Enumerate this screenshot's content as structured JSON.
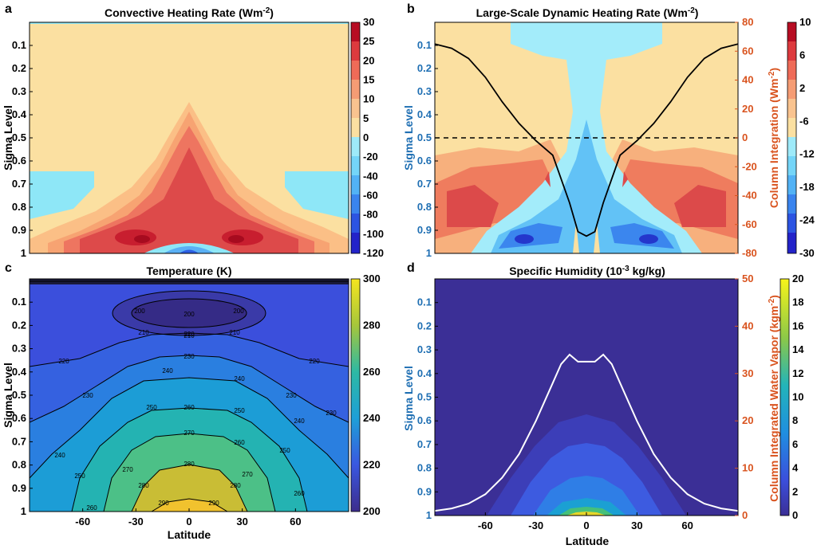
{
  "figure": {
    "x_axis_label": "Latitude",
    "latitude_ticks": [
      -60,
      -30,
      0,
      30,
      60
    ],
    "x_range": [
      -90,
      90
    ]
  },
  "chart_data": [
    {
      "panel": "a",
      "type": "heatmap",
      "title": "Convective Heating Rate (Wm",
      "title_sup": "-2",
      "title_end": ")",
      "ylabel": "Sigma Level",
      "y_ticks": [
        "0.1",
        "0.2",
        "0.3",
        "0.4",
        "0.5",
        "0.6",
        "0.7",
        "0.8",
        "0.9",
        "1"
      ],
      "y_range": [
        0,
        1
      ],
      "colorbar": {
        "ticks": [
          30,
          25,
          20,
          15,
          10,
          5,
          0,
          -20,
          -40,
          -60,
          -80,
          -100,
          -120
        ]
      },
      "levels_sigma": [
        {
          "band": "0-5",
          "color": "#fbe0a1",
          "poly": [
            [
              -80,
              0.65
            ],
            [
              -70,
              0.58
            ],
            [
              -50,
              0.52
            ],
            [
              -30,
              0.5
            ],
            [
              -18,
              0.42
            ],
            [
              -8,
              0.35
            ],
            [
              0,
              0.32
            ],
            [
              8,
              0.35
            ],
            [
              18,
              0.42
            ],
            [
              30,
              0.5
            ],
            [
              50,
              0.52
            ],
            [
              70,
              0.58
            ],
            [
              80,
              0.65
            ]
          ]
        }
      ]
    },
    {
      "panel": "b",
      "type": "heatmap",
      "title": "Large-Scale Dynamic Heating Rate (Wm",
      "title_sup": "-2",
      "title_end": ")",
      "ylabel": "Sigma Level",
      "y2label": "Column Integration (Wm",
      "y2label_sup": "-2",
      "y2label_end": ")",
      "y_ticks": [
        "0.1",
        "0.2",
        "0.3",
        "0.4",
        "0.5",
        "0.6",
        "0.7",
        "0.8",
        "0.9",
        "1"
      ],
      "y2_ticks": [
        "80",
        "60",
        "40",
        "20",
        "0",
        "-20",
        "-40",
        "-60",
        "-80"
      ],
      "y2_range": [
        -80,
        80
      ],
      "colorbar": {
        "ticks": [
          10,
          6,
          2,
          -6,
          -12,
          -18,
          -24,
          -30
        ]
      },
      "column_integration": {
        "lat": [
          -90,
          -80,
          -70,
          -60,
          -50,
          -40,
          -30,
          -20,
          -10,
          -5,
          0,
          5,
          10,
          20,
          30,
          40,
          50,
          60,
          70,
          80,
          90
        ],
        "values": [
          65,
          62,
          55,
          42,
          25,
          10,
          -2,
          -12,
          -45,
          -65,
          -68,
          -65,
          -45,
          -12,
          -2,
          10,
          25,
          42,
          55,
          62,
          65
        ]
      },
      "zero_line": 0
    },
    {
      "panel": "c",
      "type": "heatmap",
      "title": "Temperature (K)",
      "ylabel": "Sigma Level",
      "y_ticks": [
        "0.1",
        "0.2",
        "0.3",
        "0.4",
        "0.5",
        "0.6",
        "0.7",
        "0.8",
        "0.9",
        "1"
      ],
      "colorbar": {
        "ticks": [
          300,
          280,
          260,
          240,
          220,
          200
        ]
      },
      "contour_labels": [
        "200",
        "200",
        "200",
        "210",
        "210",
        "210",
        "220",
        "220",
        "220",
        "230",
        "230",
        "230",
        "230",
        "240",
        "240",
        "240",
        "240",
        "250",
        "250",
        "250",
        "250",
        "260",
        "260",
        "260",
        "260",
        "270",
        "270",
        "270",
        "280",
        "280",
        "280",
        "290",
        "290"
      ]
    },
    {
      "panel": "d",
      "type": "heatmap",
      "title": "Specific Humidity (10",
      "title_sup": "-3",
      "title_end": " kg/kg)",
      "ylabel": "Sigma Level",
      "y2label": "Column Integrated Water Vapor (kgm",
      "y2label_sup": "-2",
      "y2label_end": ")",
      "y_ticks": [
        "0.1",
        "0.2",
        "0.3",
        "0.4",
        "0.5",
        "0.6",
        "0.7",
        "0.8",
        "0.9",
        "1"
      ],
      "y2_ticks": [
        "50",
        "40",
        "30",
        "20",
        "10",
        "0"
      ],
      "y2_range": [
        0,
        50
      ],
      "colorbar": {
        "ticks": [
          20,
          18,
          16,
          14,
          12,
          10,
          8,
          6,
          4,
          2,
          0
        ]
      },
      "column_water_vapor": {
        "lat": [
          -90,
          -80,
          -70,
          -60,
          -50,
          -40,
          -30,
          -20,
          -15,
          -10,
          -5,
          0,
          5,
          10,
          15,
          20,
          30,
          40,
          50,
          60,
          70,
          80,
          90
        ],
        "values": [
          1,
          1.5,
          2.5,
          4.5,
          8,
          13,
          20,
          28,
          32,
          34,
          32.5,
          32.5,
          32.5,
          34,
          32,
          28,
          20,
          13,
          8,
          4.5,
          2.5,
          1.5,
          1
        ]
      }
    }
  ]
}
